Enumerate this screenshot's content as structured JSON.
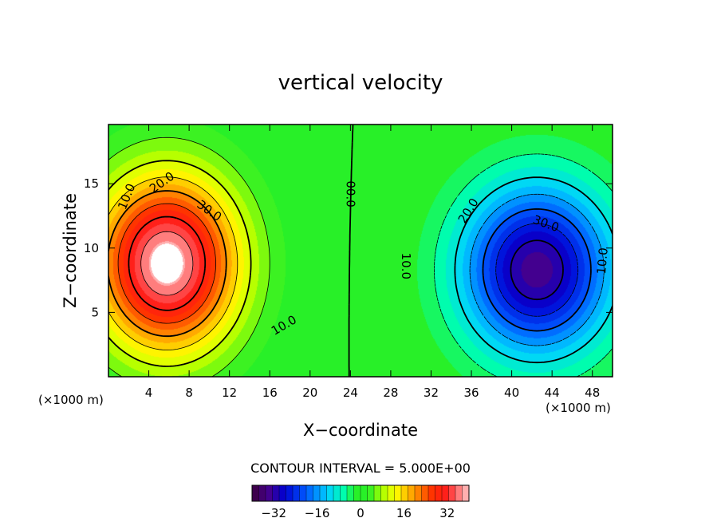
{
  "chart_data": {
    "type": "heatmap",
    "title": "vertical velocity",
    "xlabel": "X−coordinate",
    "ylabel": "Z−coordinate",
    "x_unit": "(×1000 m)",
    "y_unit": "(×1000 m)",
    "xlim": [
      0,
      50
    ],
    "ylim": [
      0,
      19.6
    ],
    "x_ticks": [
      4,
      8,
      12,
      16,
      20,
      24,
      28,
      32,
      36,
      40,
      44,
      48
    ],
    "y_ticks": [
      5,
      10,
      15
    ],
    "contour_interval_text": "CONTOUR INTERVAL = 5.000E+00",
    "contour_interval": 5,
    "value_range": [
      -40,
      40
    ],
    "colorbar_ticks": [
      "−32",
      "−16",
      "0",
      "16",
      "32"
    ],
    "colorbar_tick_values": [
      -32,
      -16,
      0,
      16,
      32
    ],
    "features": [
      {
        "name": "updraft",
        "center": [
          5.8,
          8.8
        ],
        "peak": 40,
        "spread_x": 5.0,
        "spread_z": 4.8
      },
      {
        "name": "downdraft",
        "center": [
          42.5,
          8.3
        ],
        "peak": -34,
        "spread_x": 5.2,
        "spread_z": 4.6
      }
    ],
    "contour_labels": [
      {
        "text": "10.0",
        "x": 1.8,
        "z": 14.0,
        "rotate": -68
      },
      {
        "text": "20.0",
        "x": 5.3,
        "z": 15.1,
        "rotate": -35
      },
      {
        "text": "30.0",
        "x": 10.0,
        "z": 12.9,
        "rotate": 35
      },
      {
        "text": "10.0",
        "x": 17.4,
        "z": 4.0,
        "rotate": -30
      },
      {
        "text": "00.0",
        "x": 24.0,
        "z": 14.2,
        "rotate": 90
      },
      {
        "text": "10.0",
        "x": 29.5,
        "z": 8.6,
        "rotate": 90
      },
      {
        "text": "20.0",
        "x": 35.7,
        "z": 12.9,
        "rotate": -58
      },
      {
        "text": "30.0",
        "x": 43.4,
        "z": 11.9,
        "rotate": 20
      },
      {
        "text": "10.0",
        "x": 49.0,
        "z": 9.0,
        "rotate": -85
      }
    ]
  }
}
